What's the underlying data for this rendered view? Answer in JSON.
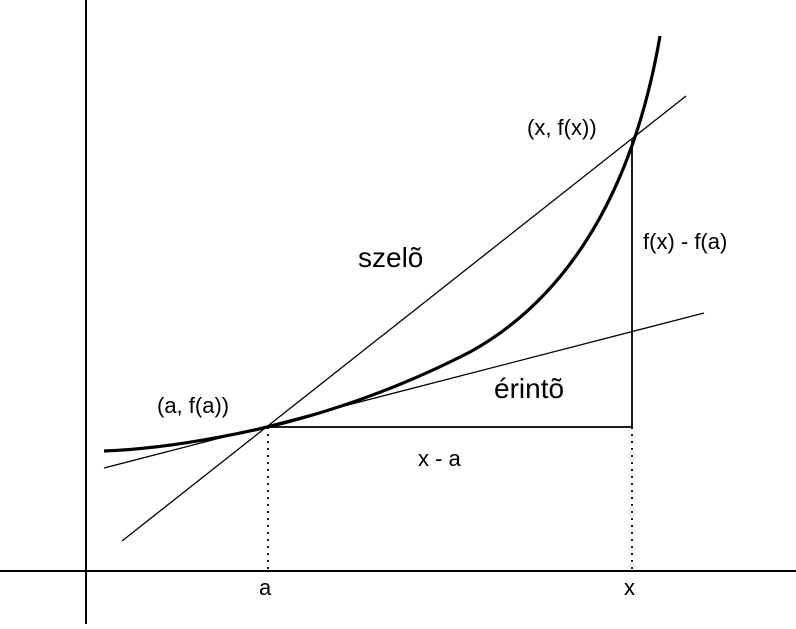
{
  "labels": {
    "secant": "szelõ",
    "tangent": "érintõ",
    "point_a": "(a, f(a))",
    "point_x": "(x, f(x))",
    "rise": "f(x) - f(a)",
    "run": "x - a",
    "tick_a": "a",
    "tick_x": "x"
  },
  "colors": {
    "ink": "#000000",
    "background": "#ffffff"
  }
}
